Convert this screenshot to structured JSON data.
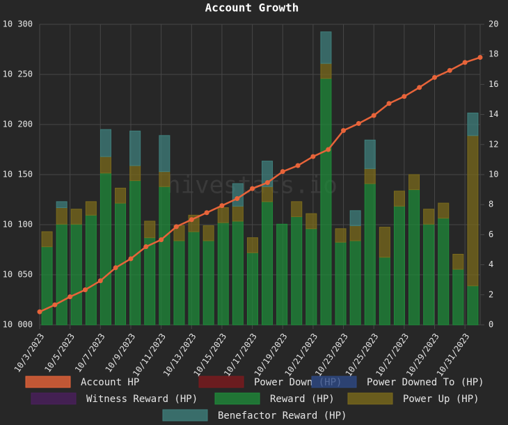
{
  "chart_data": {
    "type": "bar",
    "title": "Account Growth",
    "watermark": "hivestats.io",
    "categories": [
      "10/3/2023",
      null,
      "10/5/2023",
      null,
      "10/7/2023",
      null,
      "10/9/2023",
      null,
      "10/11/2023",
      null,
      "10/13/2023",
      null,
      "10/15/2023",
      null,
      "10/17/2023",
      null,
      "10/19/2023",
      null,
      "10/21/2023",
      null,
      "10/23/2023",
      null,
      "10/25/2023",
      null,
      "10/27/2023",
      null,
      "10/29/2023",
      null,
      "10/31/2023",
      null
    ],
    "ylim": [
      10000,
      10300
    ],
    "yticks": [
      {
        "value": 10000,
        "label": "10 000"
      },
      {
        "value": 10050,
        "label": "10 050"
      },
      {
        "value": 10100,
        "label": "10 100"
      },
      {
        "value": 10150,
        "label": "10 150"
      },
      {
        "value": 10200,
        "label": "10 200"
      },
      {
        "value": 10250,
        "label": "10 250"
      },
      {
        "value": 10300,
        "label": "10 300"
      }
    ],
    "y2lim": [
      0,
      20
    ],
    "y2ticks": [
      0,
      2,
      4,
      6,
      8,
      10,
      12,
      14,
      16,
      18,
      20
    ],
    "grid": true,
    "stacked": true,
    "legend": "bottom",
    "series": [
      {
        "name": "Account HP",
        "type": "line",
        "axis": "y",
        "color": "#e8643a",
        "values": [
          10013,
          10020,
          10028,
          10035,
          10044,
          10057,
          10066,
          10078,
          10085,
          10098,
          10105,
          10112,
          10119,
          10126,
          10136,
          10142,
          10153,
          10159,
          10168,
          10175,
          10194,
          10201,
          10209,
          10221,
          10228,
          10237,
          10247,
          10254,
          10262,
          10267
        ]
      },
      {
        "name": "Power Down (HP)",
        "type": "bar",
        "axis": "y2",
        "color": "#7d1a1e",
        "values": [
          0,
          0,
          0,
          0,
          0,
          0,
          0,
          0,
          0,
          0,
          0,
          0,
          0,
          0,
          0,
          0,
          0,
          0,
          0,
          0,
          0,
          0,
          0,
          0,
          0,
          0,
          0,
          0,
          0,
          0
        ]
      },
      {
        "name": "Power Downed To (HP)",
        "type": "bar",
        "axis": "y2",
        "color": "#2e4a86",
        "values": [
          0,
          0,
          0,
          0,
          0,
          0,
          0,
          0,
          0,
          0,
          0,
          0,
          0,
          0,
          0,
          0,
          0,
          0,
          0,
          0,
          0,
          0,
          0,
          0,
          0,
          0,
          0,
          0,
          0,
          0
        ]
      },
      {
        "name": "Witness Reward (HP)",
        "type": "bar",
        "axis": "y2",
        "color": "#4b1f5e",
        "values": [
          0,
          0,
          0,
          0,
          0,
          0,
          0,
          0,
          0,
          0,
          0,
          0,
          0,
          0,
          0,
          0,
          0,
          0,
          0,
          0,
          0,
          0,
          0,
          0,
          0,
          0,
          0,
          0,
          0,
          0
        ]
      },
      {
        "name": "Reward (HP)",
        "type": "bar",
        "axis": "y2",
        "color": "#1f8a3a",
        "values": [
          5.2,
          6.7,
          6.7,
          7.3,
          10.1,
          8.1,
          9.6,
          5.8,
          9.2,
          5.6,
          6.2,
          5.6,
          6.8,
          6.9,
          4.8,
          8.2,
          6.7,
          7.2,
          6.4,
          16.4,
          5.5,
          5.6,
          9.4,
          4.5,
          7.9,
          9.0,
          6.7,
          7.1,
          3.7,
          2.6
        ]
      },
      {
        "name": "Power Up (HP)",
        "type": "bar",
        "axis": "y2",
        "color": "#7a6a1c",
        "values": [
          1.0,
          1.1,
          1.0,
          0.9,
          1.1,
          1.0,
          1.0,
          1.1,
          1.0,
          1.0,
          1.1,
          1.0,
          1.0,
          1.0,
          1.0,
          1.0,
          0,
          1.0,
          1.0,
          1.0,
          0.9,
          1.0,
          1.0,
          2.0,
          1.0,
          1.0,
          1.0,
          1.0,
          1.0,
          10.0
        ]
      },
      {
        "name": "Benefactor Reward (HP)",
        "type": "bar",
        "axis": "y2",
        "color": "#3f7f7c",
        "values": [
          0,
          0.4,
          0,
          0,
          1.8,
          0,
          2.3,
          0,
          2.4,
          0,
          0,
          0,
          0,
          1.5,
          0,
          1.7,
          0,
          0,
          0,
          2.1,
          0,
          1.0,
          1.9,
          0,
          0,
          0,
          0,
          0,
          0,
          1.5
        ]
      }
    ]
  }
}
